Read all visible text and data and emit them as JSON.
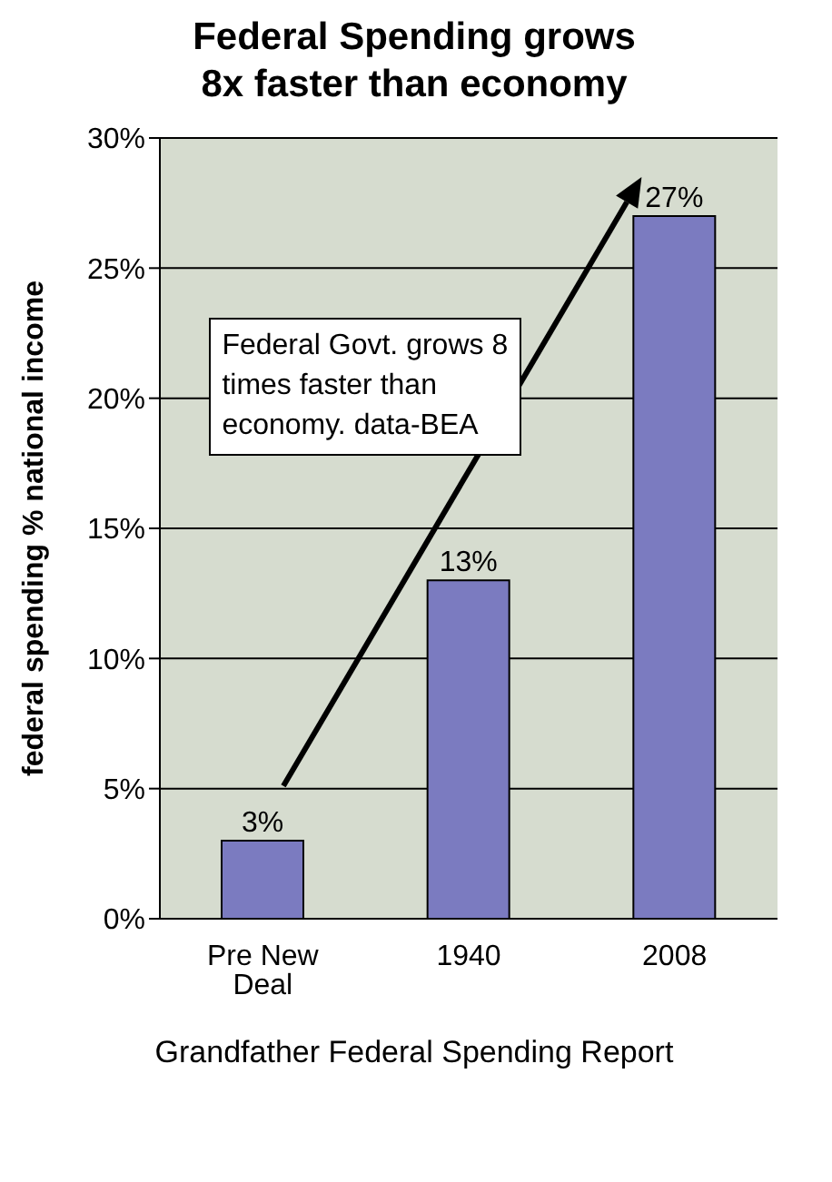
{
  "chart_data": {
    "type": "bar",
    "title": "Federal Spending grows\n8x faster than economy",
    "ylabel": "federal spending % national income",
    "categories": [
      "Pre New Deal",
      "1940",
      "2008"
    ],
    "values": [
      3,
      13,
      27
    ],
    "value_labels": [
      "3%",
      "13%",
      "27%"
    ],
    "color": "#7b7bc0",
    "ylim": [
      0,
      30
    ],
    "yticks": [
      {
        "value": 0,
        "label": "0%"
      },
      {
        "value": 5,
        "label": "5%"
      },
      {
        "value": 10,
        "label": "10%"
      },
      {
        "value": 15,
        "label": "15%"
      },
      {
        "value": 20,
        "label": "20%"
      },
      {
        "value": 25,
        "label": "25%"
      },
      {
        "value": 30,
        "label": "30%"
      }
    ],
    "grid": "y",
    "annotations": [
      "Federal Govt. grows 8 times faster than economy. data-BEA",
      "Grandfather Federal Spending Report"
    ]
  }
}
